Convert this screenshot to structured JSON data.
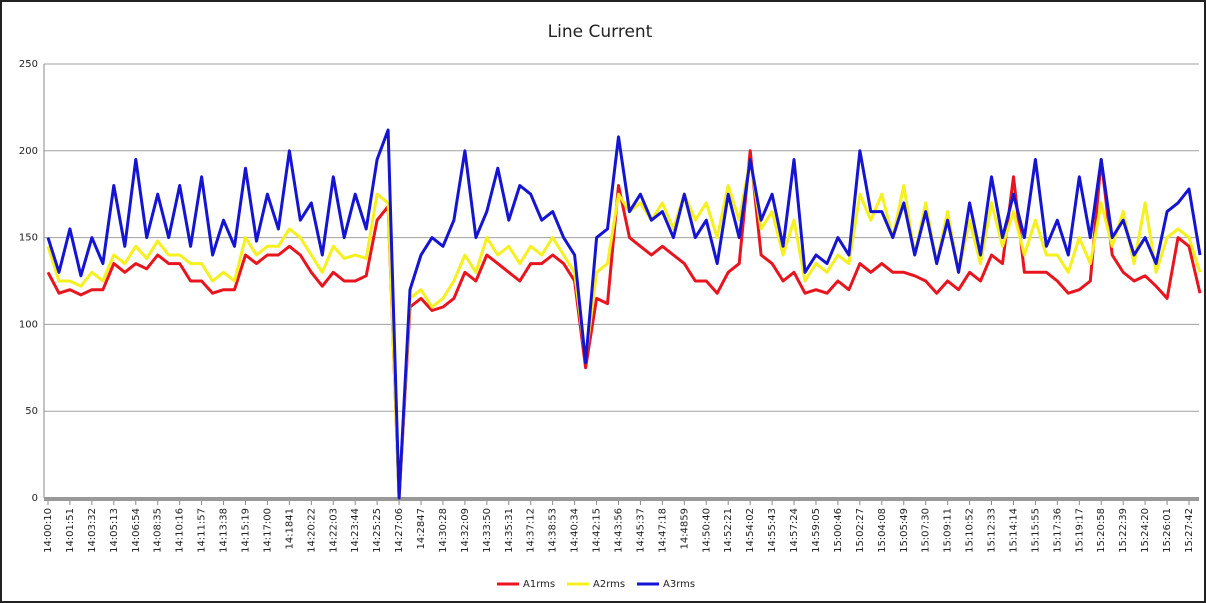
{
  "chart_data": {
    "type": "line",
    "title": "Line Current",
    "categories": [
      "14:00:10",
      null,
      "14:01:51",
      null,
      "14:03:32",
      null,
      "14:05:13",
      null,
      "14:06:54",
      null,
      "14:08:35",
      null,
      "14:10:16",
      null,
      "14:11:57",
      null,
      "14:13:38",
      null,
      "14:15:19",
      null,
      "14:17:00",
      null,
      "14:1841",
      null,
      "14:20:22",
      null,
      "14:22:03",
      null,
      "14:23:44",
      null,
      "14:25:25",
      null,
      "14:27:06",
      null,
      "14:2847",
      null,
      "14:30:28",
      null,
      "14:32:09",
      null,
      "14:33:50",
      null,
      "14:35:31",
      null,
      "14:37:12",
      null,
      "14:38:53",
      null,
      "14:40:34",
      null,
      "14:42:15",
      null,
      "14:43:56",
      null,
      "14:45:37",
      null,
      "14:47:18",
      null,
      "14:4859",
      null,
      "14:50:40",
      null,
      "14:52:21",
      null,
      "14:54:02",
      null,
      "14:55:43",
      null,
      "14:57:24",
      null,
      "14:59:05",
      null,
      "15:00:46",
      null,
      "15:02:27",
      null,
      "15:04:08",
      null,
      "15:05:49",
      null,
      "15:07:30",
      null,
      "15:09:11",
      null,
      "15:10:52",
      null,
      "15:12:33",
      null,
      "15:14:14",
      null,
      "15:15:55",
      null,
      "15:17:36",
      null,
      "15:19:17",
      null,
      "15:20:58",
      null,
      "15:22:39",
      null,
      "15:24:20",
      null,
      "15:26:01",
      null,
      "15:27:42",
      null
    ],
    "series": [
      {
        "name": "A1rms",
        "color": "#e8141e",
        "values": [
          130,
          118,
          120,
          117,
          120,
          120,
          135,
          130,
          135,
          132,
          140,
          135,
          135,
          125,
          125,
          118,
          120,
          120,
          140,
          135,
          140,
          140,
          145,
          140,
          130,
          122,
          130,
          125,
          125,
          128,
          160,
          168,
          0,
          110,
          115,
          108,
          110,
          115,
          130,
          125,
          140,
          135,
          130,
          125,
          135,
          135,
          140,
          135,
          125,
          75,
          115,
          112,
          180,
          150,
          145,
          140,
          145,
          140,
          135,
          125,
          125,
          118,
          130,
          135,
          200,
          140,
          135,
          125,
          130,
          118,
          120,
          118,
          125,
          120,
          135,
          130,
          135,
          130,
          130,
          128,
          125,
          118,
          125,
          120,
          130,
          125,
          140,
          135,
          185,
          130,
          130,
          130,
          125,
          118,
          120,
          125,
          195,
          140,
          130,
          125,
          128,
          122,
          115,
          150,
          145,
          118
        ]
      },
      {
        "name": "A2rms",
        "color": "#f5f01e",
        "values": [
          145,
          125,
          125,
          122,
          130,
          125,
          140,
          135,
          145,
          138,
          148,
          140,
          140,
          135,
          135,
          125,
          130,
          125,
          150,
          140,
          145,
          145,
          155,
          150,
          140,
          130,
          145,
          138,
          140,
          138,
          175,
          170,
          0,
          115,
          120,
          110,
          115,
          125,
          140,
          130,
          150,
          140,
          145,
          135,
          145,
          140,
          150,
          140,
          130,
          80,
          130,
          135,
          175,
          165,
          170,
          160,
          170,
          155,
          175,
          160,
          170,
          150,
          180,
          160,
          195,
          155,
          165,
          140,
          160,
          125,
          135,
          130,
          140,
          135,
          175,
          160,
          175,
          150,
          180,
          140,
          170,
          135,
          165,
          130,
          160,
          135,
          170,
          145,
          165,
          140,
          160,
          140,
          140,
          130,
          150,
          135,
          170,
          145,
          165,
          135,
          170,
          130,
          150,
          155,
          150,
          130
        ]
      },
      {
        "name": "A3rms",
        "color": "#1414d2",
        "values": [
          150,
          130,
          155,
          128,
          150,
          135,
          180,
          145,
          195,
          150,
          175,
          150,
          180,
          145,
          185,
          140,
          160,
          145,
          190,
          148,
          175,
          155,
          200,
          160,
          170,
          140,
          185,
          150,
          175,
          155,
          195,
          212,
          0,
          120,
          140,
          150,
          145,
          160,
          200,
          150,
          165,
          190,
          160,
          180,
          175,
          160,
          165,
          150,
          140,
          78,
          150,
          155,
          208,
          165,
          175,
          160,
          165,
          150,
          175,
          150,
          160,
          135,
          175,
          150,
          195,
          160,
          175,
          145,
          195,
          130,
          140,
          135,
          150,
          140,
          200,
          165,
          165,
          150,
          170,
          140,
          165,
          135,
          160,
          130,
          170,
          140,
          185,
          150,
          175,
          150,
          195,
          145,
          160,
          140,
          185,
          150,
          195,
          150,
          160,
          140,
          150,
          135,
          165,
          170,
          178,
          140
        ]
      }
    ],
    "ylim": [
      0,
      250
    ],
    "yticks": [
      0,
      50,
      100,
      150,
      200,
      250
    ],
    "grid": true,
    "legend": "bottom"
  }
}
